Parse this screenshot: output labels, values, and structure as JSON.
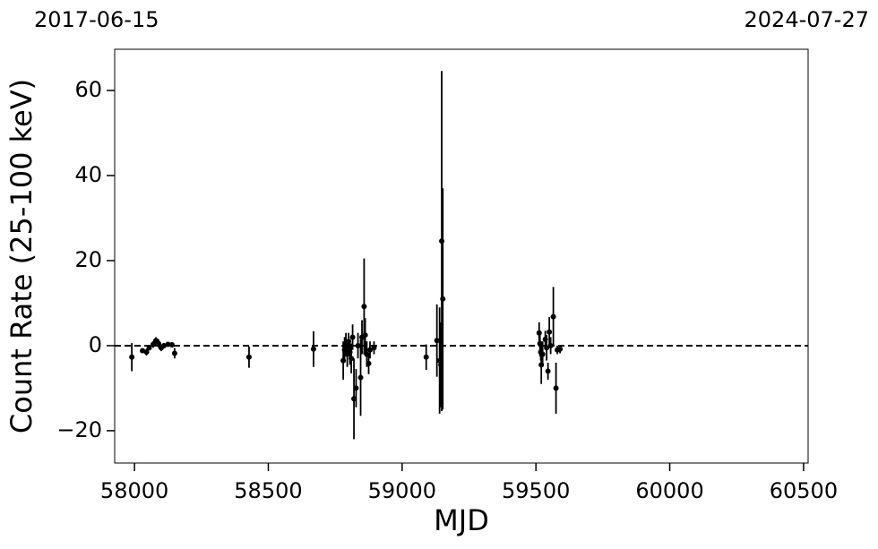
{
  "chart_data": {
    "type": "scatter",
    "x_label": "MJD",
    "y_label": "Count Rate (25-100 keV)",
    "annotations": [
      "2017-06-15",
      "2024-07-27"
    ],
    "xlim": [
      57926,
      60517
    ],
    "ylim": [
      -27.6,
      69.7
    ],
    "xticks": [
      58000,
      58500,
      59000,
      59500,
      60000,
      60500
    ],
    "yticks": [
      {
        "value": -20,
        "label": "−20"
      },
      0,
      20,
      40,
      60
    ],
    "hline": 0,
    "series": [
      {
        "color": "#000000",
        "x": [
          57990,
          58030,
          58045,
          58055,
          58070,
          58080,
          58090,
          58100,
          58110,
          58125,
          58140,
          58150,
          58428,
          58669,
          58780,
          58785,
          58790,
          58795,
          58800,
          58805,
          58810,
          58815,
          58820,
          58828,
          58835,
          58845,
          58850,
          58858,
          58862,
          58868,
          58875,
          58880,
          58895,
          59090,
          59130,
          59140,
          59145,
          59148,
          59152,
          59512,
          59515,
          59518,
          59520,
          59525,
          59535,
          59540,
          59545,
          59550,
          59555,
          59565,
          59575,
          59580,
          59590
        ],
        "values": [
          -2.7,
          -1.2,
          -1.5,
          -0.5,
          0.3,
          1.2,
          0.5,
          -0.5,
          0,
          0.3,
          0.2,
          -1.8,
          -2.7,
          -0.8,
          -3.5,
          -1,
          0.5,
          -2,
          1,
          -1.5,
          -3,
          2,
          -12.5,
          -10,
          0,
          -7.5,
          2,
          9.2,
          2.5,
          -2,
          -4.2,
          -1,
          -0.5,
          -2.7,
          1.2,
          -3.5,
          -4.5,
          24.6,
          11,
          3,
          0.5,
          -1.5,
          -4.5,
          -2,
          1.5,
          -0.5,
          -6,
          3.2,
          0,
          6.8,
          -10,
          -1,
          -0.8
        ],
        "errors": [
          3.3,
          0.5,
          0.8,
          0.6,
          0.8,
          0.8,
          1.0,
          0.8,
          0.6,
          0.5,
          0.6,
          1.2,
          2.5,
          4.2,
          4.5,
          3,
          2.5,
          3,
          2,
          3,
          3.5,
          3,
          9.5,
          4.5,
          3,
          9,
          4,
          11.3,
          4,
          3,
          2.5,
          2,
          1.5,
          3,
          8.5,
          12.5,
          10,
          40,
          26,
          2.5,
          3,
          2,
          4.5,
          3,
          2,
          3,
          2,
          3.5,
          2,
          7,
          6,
          1,
          1
        ]
      }
    ]
  }
}
